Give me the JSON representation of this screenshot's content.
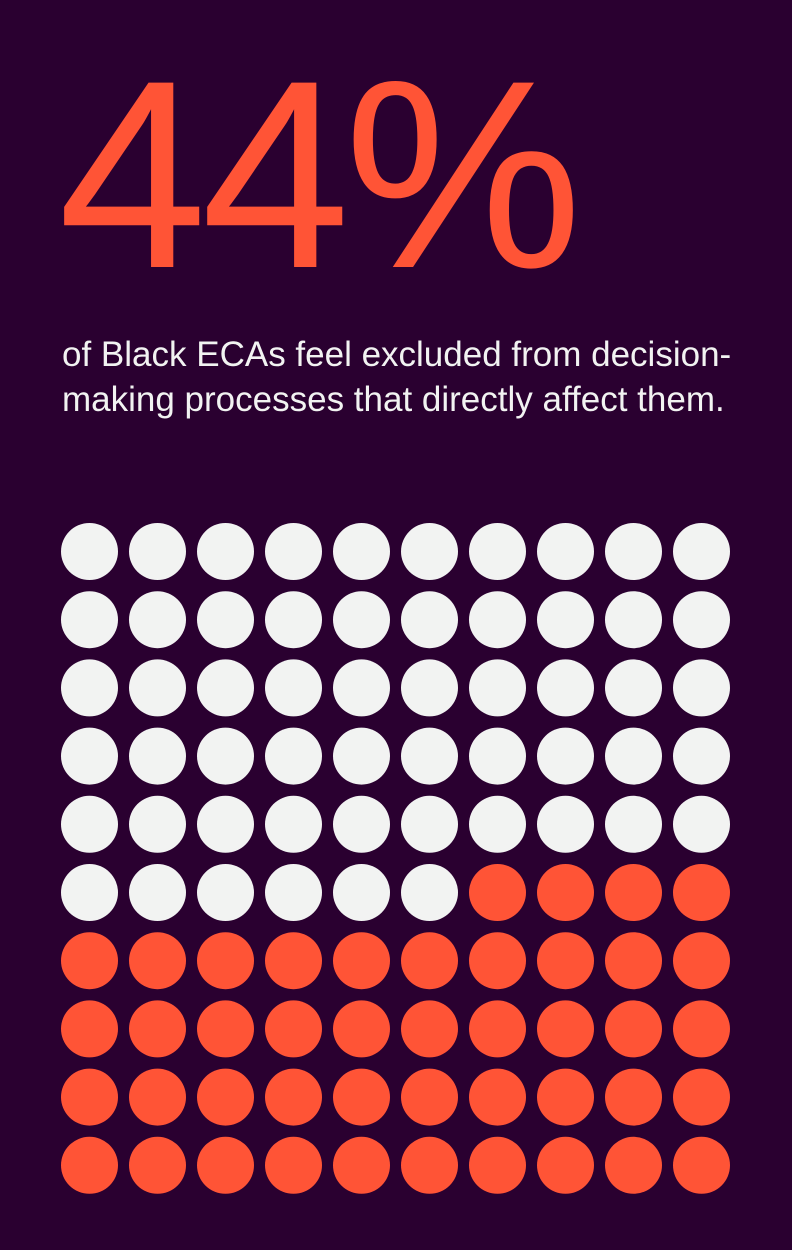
{
  "headline": "44%",
  "description": "of Black ECAs feel excluded from decision-making processes that directly affect them.",
  "colors": {
    "background": "#2a0030",
    "highlight": "#ff5436",
    "base": "#f2f3f2"
  },
  "chart_data": {
    "type": "waffle",
    "rows": 10,
    "columns": 10,
    "total": 100,
    "highlighted": 44,
    "highlight_fill_from": "bottom-right"
  }
}
